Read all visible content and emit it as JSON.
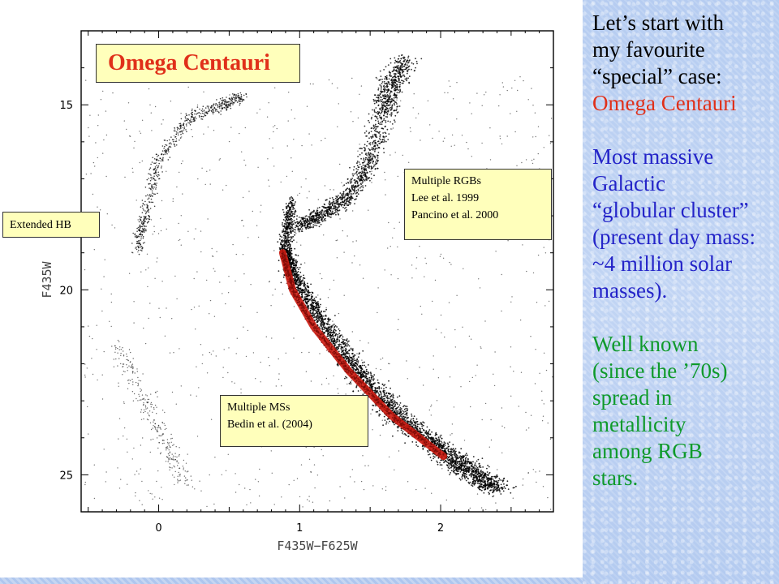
{
  "chart_data": {
    "type": "scatter",
    "title": "Omega Centauri",
    "xlabel": "F435W−F625W",
    "ylabel": "F435W",
    "xlim": [
      -0.55,
      2.8
    ],
    "ylim": [
      26.0,
      13.0
    ],
    "y_inverted": true,
    "x_ticks": [
      0,
      1,
      2
    ],
    "y_ticks": [
      15,
      20,
      25
    ],
    "grid": false,
    "point_color": "#000000",
    "highlight_color": "#cc1a10",
    "series": [
      {
        "role": "main-sequence-turnoff-and-subgiant",
        "points": [
          [
            0.95,
            17.5
          ],
          [
            0.9,
            18.8
          ],
          [
            0.95,
            19.6
          ],
          [
            1.15,
            20.8
          ],
          [
            1.45,
            22.4
          ],
          [
            1.75,
            23.6
          ],
          [
            2.1,
            24.6
          ],
          [
            2.4,
            25.4
          ]
        ]
      },
      {
        "role": "red-giant-branch",
        "points": [
          [
            0.98,
            18.3
          ],
          [
            1.15,
            18.0
          ],
          [
            1.35,
            17.5
          ],
          [
            1.5,
            16.5
          ],
          [
            1.6,
            15.2
          ],
          [
            1.65,
            14.5
          ],
          [
            1.75,
            13.8
          ]
        ]
      },
      {
        "role": "horizontal-branch",
        "points": [
          [
            -0.15,
            18.9
          ],
          [
            -0.1,
            18.0
          ],
          [
            0.0,
            16.5
          ],
          [
            0.2,
            15.4
          ],
          [
            0.45,
            15.0
          ],
          [
            0.6,
            14.8
          ]
        ]
      },
      {
        "role": "highlighted-main-sequence",
        "points": [
          [
            0.88,
            19.0
          ],
          [
            0.95,
            20.0
          ],
          [
            1.1,
            21.0
          ],
          [
            1.35,
            22.2
          ],
          [
            1.65,
            23.4
          ],
          [
            2.02,
            24.5
          ]
        ]
      }
    ],
    "annotations": [
      {
        "name": "title",
        "text": "Omega Centauri"
      },
      {
        "name": "extended-hb",
        "lines": [
          "Extended HB"
        ]
      },
      {
        "name": "multiple-rgbs",
        "lines": [
          "Multiple RGBs",
          "Lee et al. 1999",
          "Pancino et al. 2000"
        ]
      },
      {
        "name": "multiple-mss",
        "lines": [
          "Multiple MSs",
          "Bedin et al. (2004)"
        ]
      }
    ]
  },
  "side_panel": {
    "intro_lines": [
      "Let’s start with",
      "my favourite",
      "“special” case:"
    ],
    "intro_highlight": "Omega Centauri",
    "mass_lines": [
      "Most massive",
      "Galactic",
      "“globular cluster”",
      "(present day mass:",
      "~4 million solar",
      "masses)."
    ],
    "metallicity_lines": [
      "Well known",
      "(since the ’70s)",
      "spread in",
      "metallicity",
      "among RGB",
      "stars."
    ]
  },
  "colors": {
    "title_red": "#e0301a",
    "intro_black": "#000000",
    "mass_blue": "#2424c8",
    "metallicity_green": "#0f9a2b",
    "label_box_yellow": "#ffffbb",
    "side_background": "#bcd1f3"
  }
}
